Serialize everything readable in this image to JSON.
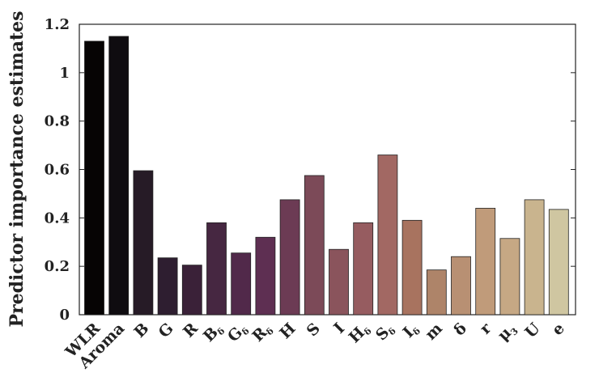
{
  "chart_data": {
    "type": "bar",
    "title": "",
    "xlabel": "",
    "ylabel": "Predictor importance estimates",
    "ylim": [
      0,
      1.2
    ],
    "yticks": [
      "0",
      "0.2",
      "0.4",
      "0.6",
      "0.8",
      "1",
      "1.2"
    ],
    "grid": false,
    "categories": [
      {
        "main": "WLR",
        "sub": ""
      },
      {
        "main": "Aroma",
        "sub": ""
      },
      {
        "main": "B",
        "sub": ""
      },
      {
        "main": "G",
        "sub": ""
      },
      {
        "main": "R",
        "sub": ""
      },
      {
        "main": "B",
        "sub": "δ"
      },
      {
        "main": "G",
        "sub": "δ"
      },
      {
        "main": "R",
        "sub": "δ"
      },
      {
        "main": "H",
        "sub": ""
      },
      {
        "main": "S",
        "sub": ""
      },
      {
        "main": "I",
        "sub": ""
      },
      {
        "main": "H",
        "sub": "δ"
      },
      {
        "main": "S",
        "sub": "δ"
      },
      {
        "main": "I",
        "sub": "δ"
      },
      {
        "main": "m",
        "sub": ""
      },
      {
        "main": "δ",
        "sub": ""
      },
      {
        "main": "r",
        "sub": ""
      },
      {
        "main": "μ",
        "sub": "3"
      },
      {
        "main": "U",
        "sub": ""
      },
      {
        "main": "e",
        "sub": ""
      }
    ],
    "values": [
      1.13,
      1.15,
      0.595,
      0.235,
      0.205,
      0.38,
      0.255,
      0.32,
      0.475,
      0.575,
      0.27,
      0.38,
      0.66,
      0.39,
      0.185,
      0.24,
      0.44,
      0.315,
      0.475,
      0.435
    ],
    "colors": [
      "#060404",
      "#0f0c10",
      "#261b26",
      "#2e1e30",
      "#3a2138",
      "#462741",
      "#51294a",
      "#5e2f52",
      "#6c3b54",
      "#7c4a58",
      "#8a545c",
      "#965c60",
      "#a26863",
      "#a8735f",
      "#ae8469",
      "#b89073",
      "#c09b7a",
      "#c6a884",
      "#c9b48e",
      "#cfc6a1"
    ]
  }
}
